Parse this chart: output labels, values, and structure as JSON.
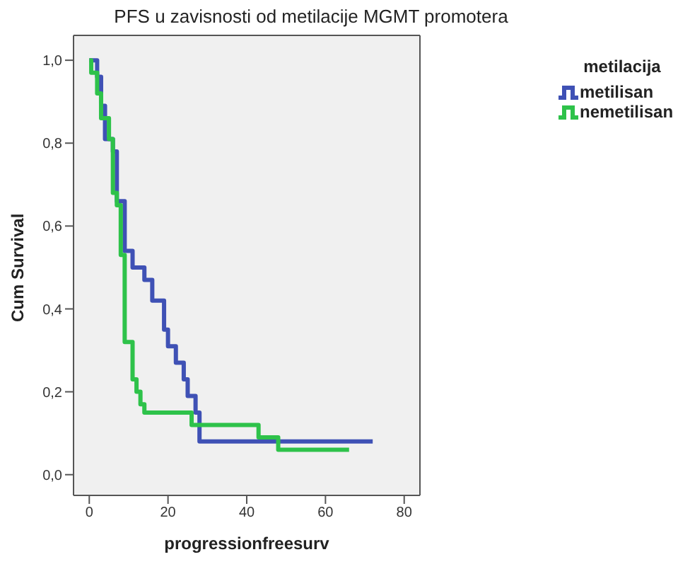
{
  "chart_data": {
    "type": "step",
    "title": "PFS u zavisnosti od metilacije MGMT promotera",
    "xlabel": "progressionfreesurv",
    "ylabel": "Cum Survival",
    "legend_title": "metilacija",
    "legend": "top right",
    "grid": false,
    "marker": "none",
    "line_style": "solid",
    "xlim": [
      -4,
      84
    ],
    "xticks": [
      0,
      20,
      40,
      60,
      80
    ],
    "ylim": [
      -0.05,
      1.06
    ],
    "yticks": [
      {
        "value": 0,
        "label": "0,0"
      },
      {
        "value": 0.2,
        "label": "0,2"
      },
      {
        "value": 0.4,
        "label": "0,4"
      },
      {
        "value": 0.6,
        "label": "0,6"
      },
      {
        "value": 0.8,
        "label": "0,8"
      },
      {
        "value": 1,
        "label": "1,0"
      }
    ],
    "series": [
      {
        "name": "metilisan",
        "color": "#3f51b5",
        "x": [
          0,
          2,
          3,
          4,
          6,
          7,
          9,
          11,
          14,
          16,
          19,
          20,
          22,
          24,
          25,
          27,
          28,
          72
        ],
        "values": [
          1,
          0.96,
          0.89,
          0.81,
          0.78,
          0.66,
          0.54,
          0.5,
          0.47,
          0.42,
          0.35,
          0.31,
          0.27,
          0.23,
          0.19,
          0.15,
          0.08,
          0.08
        ]
      },
      {
        "name": "nemetilisan",
        "color": "#2ec24a",
        "x": [
          0,
          0.5,
          2,
          3,
          5,
          6,
          7,
          8,
          9,
          11,
          12,
          13,
          14,
          26,
          43,
          48,
          66
        ],
        "values": [
          1,
          0.97,
          0.92,
          0.86,
          0.81,
          0.68,
          0.65,
          0.53,
          0.32,
          0.23,
          0.2,
          0.17,
          0.15,
          0.12,
          0.09,
          0.06,
          0.06
        ]
      }
    ]
  }
}
